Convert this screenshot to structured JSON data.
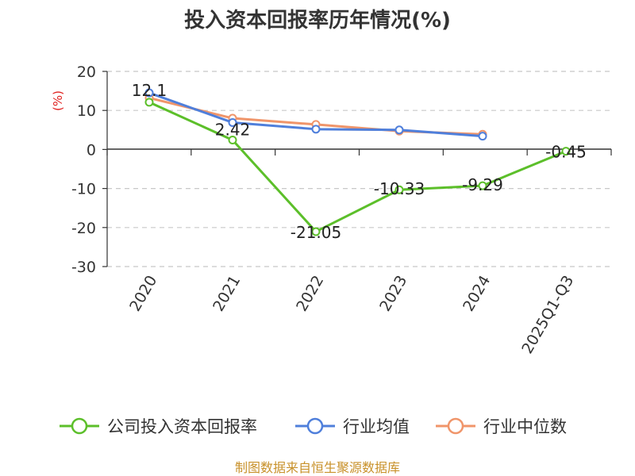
{
  "chart_data": {
    "type": "line",
    "title": "投入资本回报率历年情况(%)",
    "ylabel": "(%)",
    "xlabel": "",
    "categories": [
      "2020",
      "2021",
      "2022",
      "2023",
      "2024",
      "2025Q1-Q3"
    ],
    "ylim": [
      -30,
      20
    ],
    "yticks": [
      20,
      10,
      0,
      -10,
      -20,
      -30
    ],
    "grid": "horizontal-dashed",
    "legend_position": "bottom",
    "series": [
      {
        "name": "公司投入资本回报率",
        "color": "#5cbf2a",
        "values": [
          12.1,
          2.42,
          -21.05,
          -10.33,
          -9.29,
          -0.45
        ],
        "labels": [
          "12.1",
          "2.42",
          "-21.05",
          "-10.33",
          "-9.29",
          "-0.45"
        ]
      },
      {
        "name": "行业均值",
        "color": "#4f7fdb",
        "values": [
          14.5,
          6.9,
          5.2,
          5.0,
          3.4,
          null
        ]
      },
      {
        "name": "行业中位数",
        "color": "#f0956a",
        "values": [
          13.2,
          8.0,
          6.4,
          4.7,
          3.9,
          null
        ]
      }
    ]
  },
  "source": "制图数据来自恒生聚源数据库"
}
